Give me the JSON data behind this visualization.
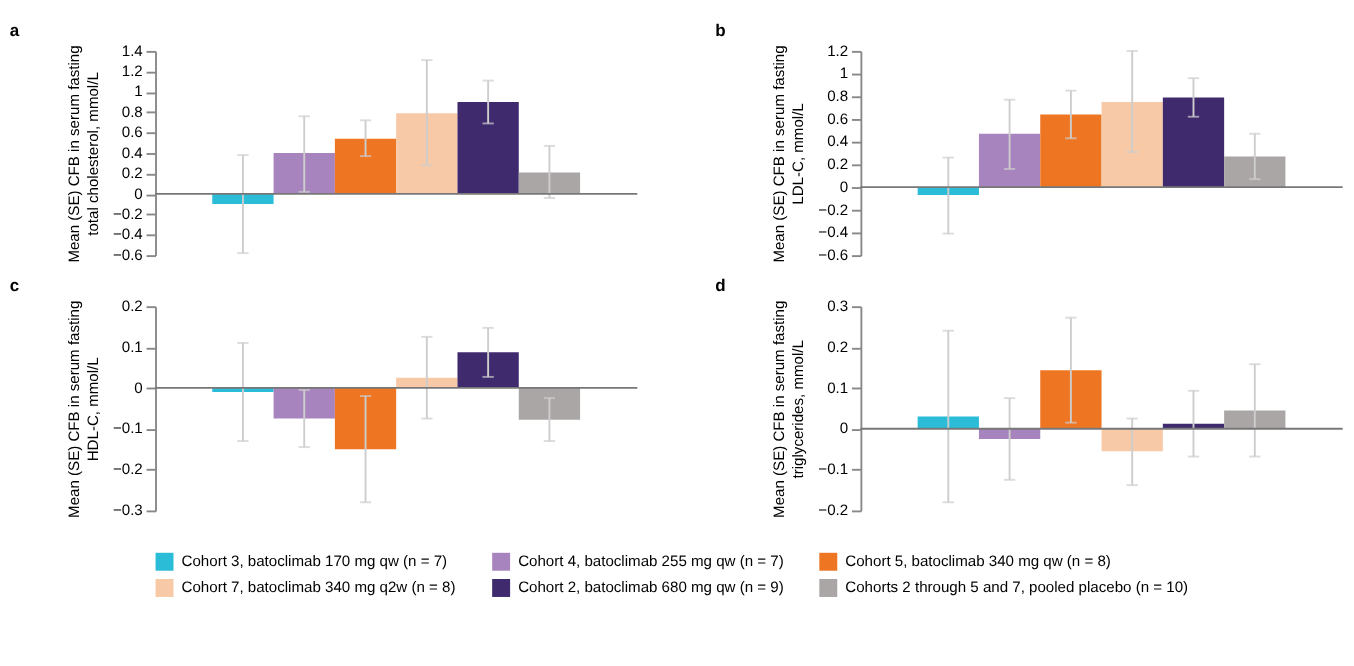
{
  "chart_data": [
    {
      "type": "bar",
      "title": "a",
      "ylabel": "Mean (SE) CFB in serum fasting\ntotal cholesterol, mmol/L",
      "categories": [
        null
      ],
      "ref_lines": [
        {
          "axis": "y",
          "value": 0,
          "color": "#777777"
        }
      ],
      "ylim": [
        -0.6,
        1.4
      ],
      "yticks": [
        -0.6,
        -0.4,
        -0.2,
        0,
        0.2,
        0.4,
        0.6,
        0.8,
        1,
        1.2,
        1.4
      ],
      "tick_labels": "y",
      "legend": "bottom",
      "grid": false,
      "series": [
        {
          "name": "Cohort 3, batoclimab 170 mg qw (n = 7)",
          "color": "#2bbcd8",
          "values": [
            -0.1
          ],
          "errors": [
            [
              -0.58,
              0.38
            ]
          ]
        },
        {
          "name": "Cohort 4, batoclimab 255 mg qw (n = 7)",
          "color": "#a884bf",
          "values": [
            0.4
          ],
          "errors": [
            [
              0.02,
              0.76
            ]
          ]
        },
        {
          "name": "Cohort 5, batoclimab 340 mg qw (n = 8)",
          "color": "#ee7623",
          "values": [
            0.54
          ],
          "errors": [
            [
              0.37,
              0.72
            ]
          ]
        },
        {
          "name": "Cohort 7, batoclimab 340 mg q2w (n = 8)",
          "color": "#f8c9a6",
          "values": [
            0.79
          ],
          "errors": [
            [
              0.28,
              1.31
            ]
          ]
        },
        {
          "name": "Cohort 2, batoclimab 680 mg qw (n = 9)",
          "color": "#3f2a6e",
          "values": [
            0.9
          ],
          "errors": [
            [
              0.69,
              1.11
            ]
          ]
        },
        {
          "name": "Cohorts 2 through 5 and 7, pooled placebo (n = 10)",
          "color": "#aaa6a6",
          "values": [
            0.21
          ],
          "errors": [
            [
              -0.04,
              0.47
            ]
          ]
        }
      ]
    },
    {
      "type": "bar",
      "title": "b",
      "ylabel": "Mean (SE) CFB in serum fasting\nLDL-C, mmol/L",
      "categories": [
        null
      ],
      "ref_lines": [
        {
          "axis": "y",
          "value": 0,
          "color": "#777777"
        }
      ],
      "ylim": [
        -0.6,
        1.2
      ],
      "yticks": [
        -0.6,
        -0.4,
        -0.2,
        0,
        0.2,
        0.4,
        0.6,
        0.8,
        1,
        1.2
      ],
      "tick_labels": "y",
      "legend": "bottom",
      "grid": false,
      "series": [
        {
          "name": "Cohort 3, batoclimab 170 mg qw (n = 7)",
          "color": "#2bbcd8",
          "values": [
            -0.07
          ],
          "errors": [
            [
              -0.41,
              0.26
            ]
          ]
        },
        {
          "name": "Cohort 4, batoclimab 255 mg qw (n = 7)",
          "color": "#a884bf",
          "values": [
            0.47
          ],
          "errors": [
            [
              0.16,
              0.77
            ]
          ]
        },
        {
          "name": "Cohort 5, batoclimab 340 mg qw (n = 8)",
          "color": "#ee7623",
          "values": [
            0.64
          ],
          "errors": [
            [
              0.43,
              0.85
            ]
          ]
        },
        {
          "name": "Cohort 7, batoclimab 340 mg q2w (n = 8)",
          "color": "#f8c9a6",
          "values": [
            0.75
          ],
          "errors": [
            [
              0.31,
              1.2
            ]
          ]
        },
        {
          "name": "Cohort 2, batoclimab 680 mg qw (n = 9)",
          "color": "#3f2a6e",
          "values": [
            0.79
          ],
          "errors": [
            [
              0.62,
              0.96
            ]
          ]
        },
        {
          "name": "Cohorts 2 through 5 and 7, pooled placebo (n = 10)",
          "color": "#aaa6a6",
          "values": [
            0.27
          ],
          "errors": [
            [
              0.07,
              0.47
            ]
          ]
        }
      ]
    },
    {
      "type": "bar",
      "title": "c",
      "ylabel": "Mean (SE) CFB in serum fasting\nHDL-C, mmol/L",
      "categories": [
        null
      ],
      "ref_lines": [
        {
          "axis": "y",
          "value": 0,
          "color": "#777777"
        }
      ],
      "ylim": [
        -0.3,
        0.2
      ],
      "yticks": [
        -0.3,
        -0.2,
        -0.1,
        0,
        0.1,
        0.2
      ],
      "tick_labels": "y",
      "legend": "bottom",
      "grid": false,
      "series": [
        {
          "name": "Cohort 3, batoclimab 170 mg qw (n = 7)",
          "color": "#2bbcd8",
          "values": [
            -0.01
          ],
          "errors": [
            [
              -0.13,
              0.11
            ]
          ]
        },
        {
          "name": "Cohort 4, batoclimab 255 mg qw (n = 7)",
          "color": "#a884bf",
          "values": [
            -0.075
          ],
          "errors": [
            [
              -0.145,
              -0.005
            ]
          ]
        },
        {
          "name": "Cohort 5, batoclimab 340 mg qw (n = 8)",
          "color": "#ee7623",
          "values": [
            -0.15
          ],
          "errors": [
            [
              -0.28,
              -0.02
            ]
          ]
        },
        {
          "name": "Cohort 7, batoclimab 340 mg q2w (n = 8)",
          "color": "#f8c9a6",
          "values": [
            0.025
          ],
          "errors": [
            [
              -0.075,
              0.125
            ]
          ]
        },
        {
          "name": "Cohort 2, batoclimab 680 mg qw (n = 9)",
          "color": "#3f2a6e",
          "values": [
            0.087
          ],
          "errors": [
            [
              0.027,
              0.147
            ]
          ]
        },
        {
          "name": "Cohorts 2 through 5 and 7, pooled placebo (n = 10)",
          "color": "#aaa6a6",
          "values": [
            -0.078
          ],
          "errors": [
            [
              -0.13,
              -0.025
            ]
          ]
        }
      ]
    },
    {
      "type": "bar",
      "title": "d",
      "ylabel": "Mean (SE) CFB in serum fasting\ntriglycerides, mmol/L",
      "categories": [
        null
      ],
      "ref_lines": [
        {
          "axis": "y",
          "value": 0,
          "color": "#777777"
        }
      ],
      "ylim": [
        -0.2,
        0.3
      ],
      "yticks": [
        -0.2,
        -0.1,
        0,
        0.1,
        0.2,
        0.3
      ],
      "tick_labels": "y",
      "legend": "bottom",
      "grid": false,
      "series": [
        {
          "name": "Cohort 3, batoclimab 170 mg qw (n = 7)",
          "color": "#2bbcd8",
          "values": [
            0.03
          ],
          "errors": [
            [
              -0.18,
              0.24
            ]
          ]
        },
        {
          "name": "Cohort 4, batoclimab 255 mg qw (n = 7)",
          "color": "#a884bf",
          "values": [
            -0.025
          ],
          "errors": [
            [
              -0.125,
              0.075
            ]
          ]
        },
        {
          "name": "Cohort 5, batoclimab 340 mg qw (n = 8)",
          "color": "#ee7623",
          "values": [
            0.143
          ],
          "errors": [
            [
              0.015,
              0.272
            ]
          ]
        },
        {
          "name": "Cohort 7, batoclimab 340 mg q2w (n = 8)",
          "color": "#f8c9a6",
          "values": [
            -0.055
          ],
          "errors": [
            [
              -0.138,
              0.025
            ]
          ]
        },
        {
          "name": "Cohort 2, batoclimab 680 mg qw (n = 9)",
          "color": "#3f2a6e",
          "values": [
            0.012
          ],
          "errors": [
            [
              -0.068,
              0.093
            ]
          ]
        },
        {
          "name": "Cohorts 2 through 5 and 7, pooled placebo (n = 10)",
          "color": "#aaa6a6",
          "values": [
            0.045
          ],
          "errors": [
            [
              -0.068,
              0.158
            ]
          ]
        }
      ]
    }
  ]
}
